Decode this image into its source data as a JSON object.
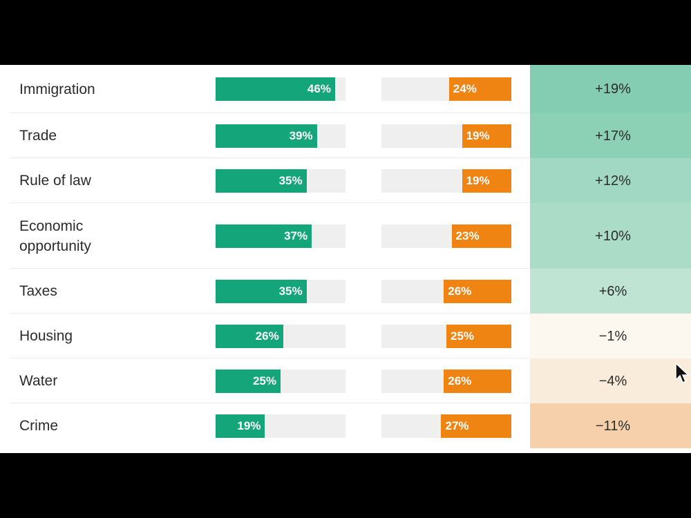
{
  "chart_data": {
    "type": "bar",
    "categories": [
      "Immigration",
      "Trade",
      "Rule of law",
      "Economic\nopportunity",
      "Taxes",
      "Housing",
      "Water",
      "Crime"
    ],
    "series": [
      {
        "values": [
          46,
          39,
          35,
          37,
          35,
          26,
          25,
          19
        ],
        "labels": [
          "46%",
          "39%",
          "35%",
          "37%",
          "35%",
          "26%",
          "25%",
          "19%"
        ],
        "color": "#14a67a"
      },
      {
        "values": [
          24,
          19,
          19,
          23,
          26,
          25,
          26,
          27
        ],
        "labels": [
          "24%",
          "19%",
          "19%",
          "23%",
          "26%",
          "25%",
          "26%",
          "27%"
        ],
        "color": "#f08413"
      }
    ],
    "differences": [
      19,
      17,
      12,
      10,
      6,
      -1,
      -4,
      -11
    ],
    "difference_labels": [
      "+19%",
      "+17%",
      "+12%",
      "+10%",
      "+6%",
      "−1%",
      "−4%",
      "−11%"
    ],
    "scale_max": 50,
    "colors": {
      "positive_strong": "#84cdb2",
      "neutral": "#fdfcf7",
      "negative_strong": "#f6d0aa"
    }
  }
}
